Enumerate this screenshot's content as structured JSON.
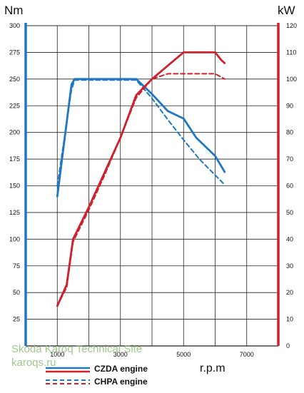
{
  "chart_data": {
    "type": "line",
    "y_left_label": "Nm",
    "y_right_label": "kW",
    "xlabel": "r.p.m",
    "x_ticks": [
      1000,
      3000,
      5000,
      7000
    ],
    "x_tick_labels": [
      "1000",
      "3000",
      "5000",
      "7000"
    ],
    "xlim": [
      0,
      8000
    ],
    "y_left_ticks": [
      25,
      50,
      75,
      100,
      125,
      150,
      175,
      200,
      225,
      250,
      275,
      300
    ],
    "y_left_tick_labels": [
      "25",
      "50",
      "75",
      "100",
      "125",
      "150",
      "175",
      "200",
      "225",
      "250",
      "275",
      "300"
    ],
    "y_right_ticks": [
      0,
      10,
      20,
      30,
      40,
      50,
      60,
      70,
      80,
      90,
      100,
      110,
      120
    ],
    "y_right_tick_labels": [
      "0",
      "10",
      "20",
      "30",
      "40",
      "50",
      "60",
      "70",
      "80",
      "90",
      "100",
      "110",
      "120"
    ],
    "y_left_lim": [
      0,
      300
    ],
    "y_right_lim": [
      0,
      120
    ],
    "grid": true,
    "series": [
      {
        "name": "CZDA engine",
        "quantity": "torque",
        "axis": "left",
        "style": "solid",
        "color": "#1f78c1",
        "x": [
          1000,
          1450,
          1550,
          3500,
          4000,
          4500,
          5000,
          5400,
          6000,
          6300
        ],
        "y": [
          140,
          245,
          250,
          250,
          236,
          220,
          213,
          195,
          178,
          163
        ]
      },
      {
        "name": "CHPA engine",
        "quantity": "torque",
        "axis": "left",
        "style": "dashed",
        "color": "#1f78c1",
        "x": [
          1000,
          1450,
          1550,
          3500,
          4000,
          4500,
          5000,
          5500,
          6000,
          6300
        ],
        "y": [
          150,
          240,
          249,
          249,
          232,
          212,
          193,
          175,
          160,
          151
        ]
      },
      {
        "name": "CZDA engine",
        "quantity": "power",
        "axis": "right",
        "style": "solid",
        "color": "#d0202e",
        "x": [
          1000,
          1300,
          1500,
          2000,
          2500,
          3000,
          3500,
          4000,
          4500,
          5000,
          5500,
          6000,
          6200,
          6300
        ],
        "y": [
          15,
          23,
          40,
          52,
          65,
          78,
          94,
          100,
          105,
          110,
          110,
          110,
          107,
          106
        ]
      },
      {
        "name": "CHPA engine",
        "quantity": "power",
        "axis": "right",
        "style": "dashed",
        "color": "#d0202e",
        "x": [
          1000,
          1300,
          1500,
          2000,
          2500,
          3000,
          3500,
          4000,
          4500,
          5000,
          5500,
          6000,
          6300
        ],
        "y": [
          15,
          22,
          39,
          51,
          64,
          78,
          93,
          100,
          102,
          102,
          102,
          102,
          100
        ]
      }
    ],
    "legend": {
      "placement": "bottom-center",
      "entries": [
        "CZDA engine",
        "CHPA engine"
      ]
    }
  },
  "watermark": {
    "line1": "Skoda Karoq Technical Site",
    "line2": "karoqs.ru"
  },
  "colors": {
    "torque": "#1f78c1",
    "power": "#d0202e",
    "grid": "#222222"
  }
}
